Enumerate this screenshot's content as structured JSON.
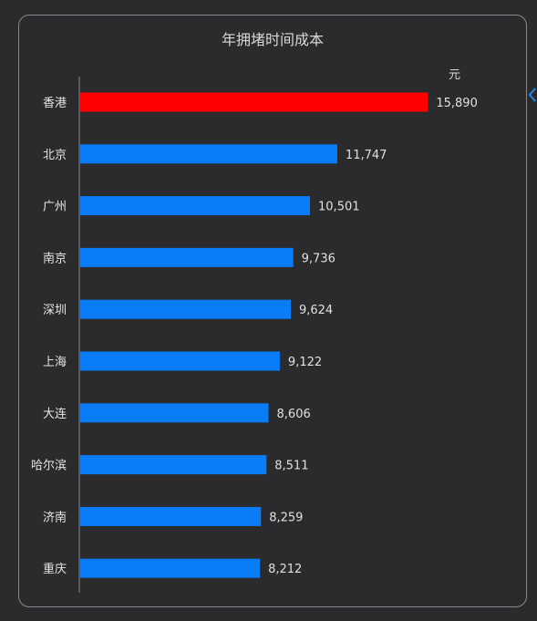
{
  "chart_data": {
    "type": "bar",
    "orientation": "horizontal",
    "title": "年拥堵时间成本",
    "unit_label": "元",
    "categories": [
      "香港",
      "北京",
      "广州",
      "南京",
      "深圳",
      "上海",
      "大连",
      "哈尔滨",
      "济南",
      "重庆"
    ],
    "values": [
      15890,
      11747,
      10501,
      9736,
      9624,
      9122,
      8606,
      8511,
      8259,
      8212
    ],
    "value_labels": [
      "15,890",
      "11,747",
      "10,501",
      "9,736",
      "9,624",
      "9,122",
      "8,606",
      "8,511",
      "8,259",
      "8,212"
    ],
    "colors": {
      "highlight": "#ff0000",
      "default": "#0a7cf5",
      "axis": "#8a8a8e"
    },
    "highlight_index": 0,
    "xlim": [
      0,
      16000
    ],
    "grid": false
  }
}
